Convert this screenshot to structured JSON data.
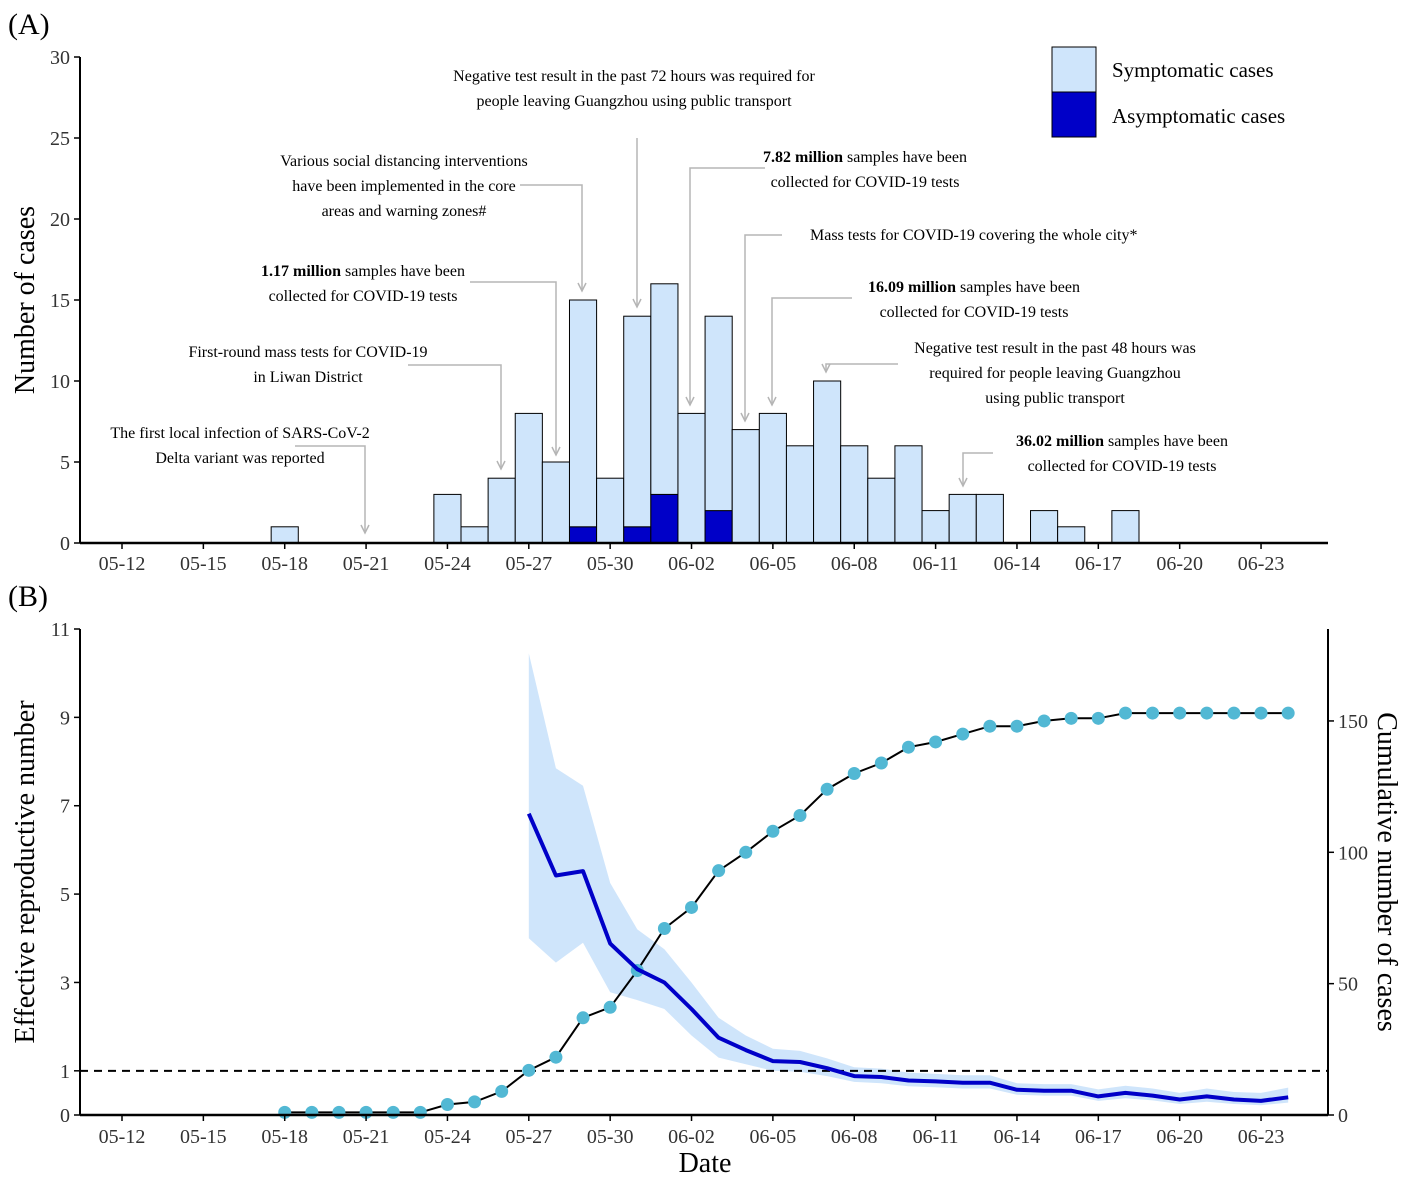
{
  "chart_data": [
    {
      "panel": "(A)",
      "type": "bar",
      "stacked": true,
      "ylabel": "Number of cases",
      "ylim": [
        0,
        30
      ],
      "yticks": [
        0,
        5,
        10,
        15,
        20,
        25,
        30
      ],
      "xticks": [
        "05-12",
        "05-15",
        "05-18",
        "05-21",
        "05-24",
        "05-27",
        "05-30",
        "06-02",
        "06-05",
        "06-08",
        "06-11",
        "06-14",
        "06-17",
        "06-20",
        "06-23"
      ],
      "categories": [
        "05-18",
        "05-24",
        "05-25",
        "05-26",
        "05-27",
        "05-28",
        "05-29",
        "05-30",
        "05-31",
        "06-01",
        "06-02",
        "06-03",
        "06-04",
        "06-05",
        "06-06",
        "06-07",
        "06-08",
        "06-09",
        "06-10",
        "06-11",
        "06-12",
        "06-13",
        "06-15",
        "06-16",
        "06-18"
      ],
      "series": [
        {
          "name": "Symptomatic cases",
          "color": "#cfe5fb",
          "values": [
            1,
            3,
            1,
            4,
            8,
            5,
            14,
            4,
            13,
            13,
            8,
            12,
            7,
            8,
            6,
            10,
            6,
            4,
            6,
            2,
            3,
            3,
            2,
            1,
            2
          ]
        },
        {
          "name": "Asymptomatic cases",
          "color": "#0000c8",
          "values": [
            0,
            0,
            0,
            0,
            0,
            0,
            1,
            0,
            1,
            3,
            0,
            2,
            0,
            0,
            0,
            0,
            0,
            0,
            0,
            0,
            0,
            0,
            0,
            0,
            0
          ]
        }
      ],
      "legend_position": "top-right",
      "annotations": [
        {
          "date": "05-21",
          "lines": [
            [
              {
                "t": "The first local infection of SARS-CoV-2",
                "b": false
              }
            ],
            [
              {
                "t": "Delta variant was reported",
                "b": false
              }
            ]
          ]
        },
        {
          "date": "05-26",
          "lines": [
            [
              {
                "t": "First-round mass tests for COVID-19",
                "b": false
              }
            ],
            [
              {
                "t": "in Liwan District",
                "b": false
              }
            ]
          ]
        },
        {
          "date": "05-28",
          "lines": [
            [
              {
                "t": "1.17 million",
                "b": true
              },
              {
                "t": " samples have been",
                "b": false
              }
            ],
            [
              {
                "t": "collected for COVID-19 tests",
                "b": false
              }
            ]
          ]
        },
        {
          "date": "05-29",
          "lines": [
            [
              {
                "t": "Various social distancing interventions",
                "b": false
              }
            ],
            [
              {
                "t": "have been implemented in the core",
                "b": false
              }
            ],
            [
              {
                "t": "areas and warning zones#",
                "b": false
              }
            ]
          ]
        },
        {
          "date": "05-31",
          "lines": [
            [
              {
                "t": "Negative test result in the past 72 hours was required for",
                "b": false
              }
            ],
            [
              {
                "t": "people leaving Guangzhou using public transport",
                "b": false
              }
            ]
          ]
        },
        {
          "date": "06-02",
          "lines": [
            [
              {
                "t": "7.82 million",
                "b": true
              },
              {
                "t": " samples have been",
                "b": false
              }
            ],
            [
              {
                "t": "collected for COVID-19 tests",
                "b": false
              }
            ]
          ]
        },
        {
          "date": "06-04",
          "lines": [
            [
              {
                "t": "Mass tests for COVID-19 covering the whole city*",
                "b": false
              }
            ]
          ]
        },
        {
          "date": "06-05",
          "lines": [
            [
              {
                "t": "16.09 million",
                "b": true
              },
              {
                "t": " samples have been",
                "b": false
              }
            ],
            [
              {
                "t": "collected for COVID-19 tests",
                "b": false
              }
            ]
          ]
        },
        {
          "date": "06-07",
          "lines": [
            [
              {
                "t": "Negative test result in the past 48 hours was",
                "b": false
              }
            ],
            [
              {
                "t": "required for people leaving Guangzhou",
                "b": false
              }
            ],
            [
              {
                "t": "using public transport",
                "b": false
              }
            ]
          ]
        },
        {
          "date": "06-12",
          "lines": [
            [
              {
                "t": "36.02 million",
                "b": true
              },
              {
                "t": " samples have been",
                "b": false
              }
            ],
            [
              {
                "t": "collected for COVID-19 tests",
                "b": false
              }
            ]
          ]
        }
      ]
    },
    {
      "panel": "(B)",
      "type": "line",
      "xlabel": "Date",
      "ylabel": "Effective reproductive number",
      "y2label": "Cumulative number of cases",
      "ylim": [
        0,
        11
      ],
      "yticks": [
        0,
        1,
        3,
        5,
        7,
        9,
        11
      ],
      "y2lim": [
        0,
        185
      ],
      "y2ticks": [
        0,
        50,
        100,
        150
      ],
      "xticks": [
        "05-12",
        "05-15",
        "05-18",
        "05-21",
        "05-24",
        "05-27",
        "05-30",
        "06-02",
        "06-05",
        "06-08",
        "06-11",
        "06-14",
        "06-17",
        "06-20",
        "06-23"
      ],
      "reference_line": 1,
      "rt": {
        "color": "#0000c8",
        "band_color": "#cfe5fb",
        "x": [
          "05-27",
          "05-28",
          "05-29",
          "05-30",
          "05-31",
          "06-01",
          "06-02",
          "06-03",
          "06-04",
          "06-05",
          "06-06",
          "06-07",
          "06-08",
          "06-09",
          "06-10",
          "06-11",
          "06-12",
          "06-13",
          "06-14",
          "06-15",
          "06-16",
          "06-17",
          "06-18",
          "06-19",
          "06-20",
          "06-21",
          "06-22",
          "06-23",
          "06-24"
        ],
        "y": [
          6.82,
          5.42,
          5.52,
          3.88,
          3.3,
          3.0,
          2.4,
          1.75,
          1.47,
          1.22,
          1.2,
          1.06,
          0.88,
          0.86,
          0.78,
          0.76,
          0.73,
          0.73,
          0.57,
          0.55,
          0.55,
          0.42,
          0.5,
          0.44,
          0.35,
          0.42,
          0.35,
          0.32,
          0.4
        ],
        "lower": [
          4.0,
          3.45,
          3.9,
          2.78,
          2.6,
          2.4,
          1.8,
          1.3,
          1.15,
          1.0,
          0.98,
          0.88,
          0.75,
          0.72,
          0.65,
          0.63,
          0.6,
          0.6,
          0.46,
          0.44,
          0.44,
          0.32,
          0.38,
          0.33,
          0.25,
          0.3,
          0.25,
          0.22,
          0.28
        ],
        "upper": [
          10.45,
          7.85,
          7.45,
          5.25,
          4.2,
          3.75,
          3.0,
          2.2,
          1.8,
          1.5,
          1.45,
          1.28,
          1.08,
          1.05,
          0.96,
          0.93,
          0.9,
          0.9,
          0.72,
          0.7,
          0.7,
          0.58,
          0.66,
          0.6,
          0.5,
          0.6,
          0.52,
          0.5,
          0.62
        ]
      },
      "cumulative": {
        "color": "#52b8d4",
        "x": [
          "05-18",
          "05-19",
          "05-20",
          "05-21",
          "05-22",
          "05-23",
          "05-24",
          "05-25",
          "05-26",
          "05-27",
          "05-28",
          "05-29",
          "05-30",
          "05-31",
          "06-01",
          "06-02",
          "06-03",
          "06-04",
          "06-05",
          "06-06",
          "06-07",
          "06-08",
          "06-09",
          "06-10",
          "06-11",
          "06-12",
          "06-13",
          "06-14",
          "06-15",
          "06-16",
          "06-17",
          "06-18",
          "06-19",
          "06-20",
          "06-21",
          "06-22",
          "06-23",
          "06-24"
        ],
        "y": [
          1,
          1,
          1,
          1,
          1,
          1,
          4,
          5,
          9,
          17,
          22,
          37,
          41,
          55,
          71,
          79,
          93,
          100,
          108,
          114,
          124,
          130,
          134,
          140,
          142,
          145,
          148,
          148,
          150,
          151,
          151,
          153,
          153,
          153,
          153,
          153,
          153,
          153
        ]
      }
    }
  ]
}
